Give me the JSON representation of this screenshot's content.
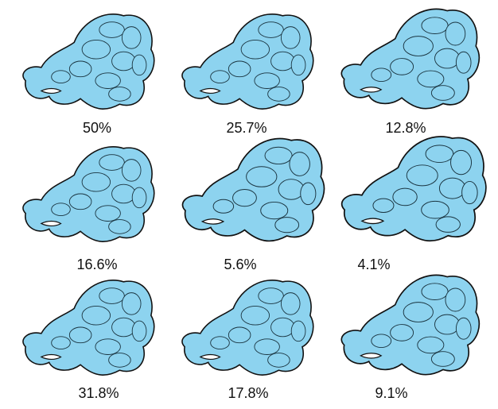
{
  "panels": [
    {
      "label": "50%"
    },
    {
      "label": "25.7%"
    },
    {
      "label": "12.8%"
    },
    {
      "label": "16.6%"
    },
    {
      "label": "5.6%"
    },
    {
      "label": "4.1%"
    },
    {
      "label": "31.8%"
    },
    {
      "label": "17.8%"
    },
    {
      "label": "9.1%"
    }
  ]
}
